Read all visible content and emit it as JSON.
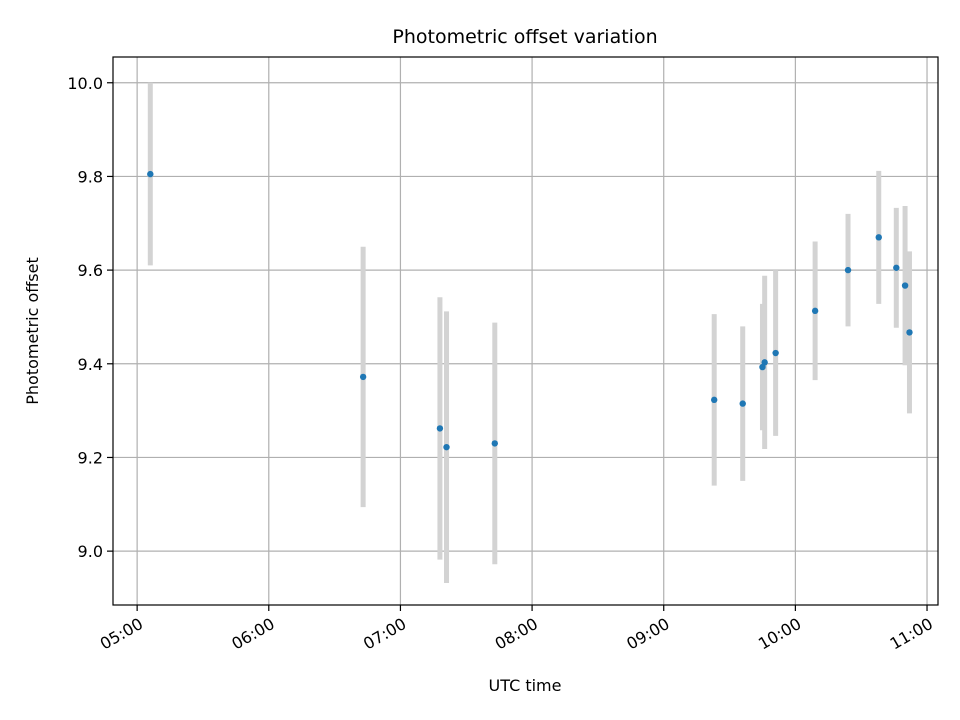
{
  "chart_data": {
    "type": "scatter",
    "title": "Photometric offset variation",
    "xlabel": "UTC time",
    "ylabel": "Photometric offset",
    "xlim": [
      "04:49",
      "11:05"
    ],
    "ylim": [
      8.885,
      10.055
    ],
    "x_ticks": [
      "05:00",
      "06:00",
      "07:00",
      "08:00",
      "09:00",
      "10:00",
      "11:00"
    ],
    "y_ticks": [
      9.0,
      9.2,
      9.4,
      9.6,
      9.8,
      10.0
    ],
    "y_tick_labels": [
      "9.0",
      "9.2",
      "9.4",
      "9.6",
      "9.8",
      "10.0"
    ],
    "grid": true,
    "legend": "none",
    "colors": {
      "point": "#1f77b4",
      "errorbar": "#d3d3d3",
      "grid": "#b0b0b0"
    },
    "points": [
      {
        "x": "05:06",
        "y": 9.805,
        "yerr": 0.195
      },
      {
        "x": "06:43",
        "y": 9.372,
        "yerr": 0.278
      },
      {
        "x": "07:18",
        "y": 9.262,
        "yerr": 0.28
      },
      {
        "x": "07:21",
        "y": 9.222,
        "yerr": 0.29
      },
      {
        "x": "07:43",
        "y": 9.23,
        "yerr": 0.258
      },
      {
        "x": "09:23",
        "y": 9.323,
        "yerr": 0.183
      },
      {
        "x": "09:36",
        "y": 9.315,
        "yerr": 0.165
      },
      {
        "x": "09:45",
        "y": 9.393,
        "yerr": 0.135
      },
      {
        "x": "09:46",
        "y": 9.403,
        "yerr": 0.185
      },
      {
        "x": "09:51",
        "y": 9.423,
        "yerr": 0.177
      },
      {
        "x": "10:09",
        "y": 9.513,
        "yerr": 0.148
      },
      {
        "x": "10:24",
        "y": 9.6,
        "yerr": 0.12
      },
      {
        "x": "10:38",
        "y": 9.67,
        "yerr": 0.142
      },
      {
        "x": "10:46",
        "y": 9.605,
        "yerr": 0.128
      },
      {
        "x": "10:50",
        "y": 9.567,
        "yerr": 0.17
      },
      {
        "x": "10:52",
        "y": 9.467,
        "yerr": 0.173
      }
    ]
  }
}
